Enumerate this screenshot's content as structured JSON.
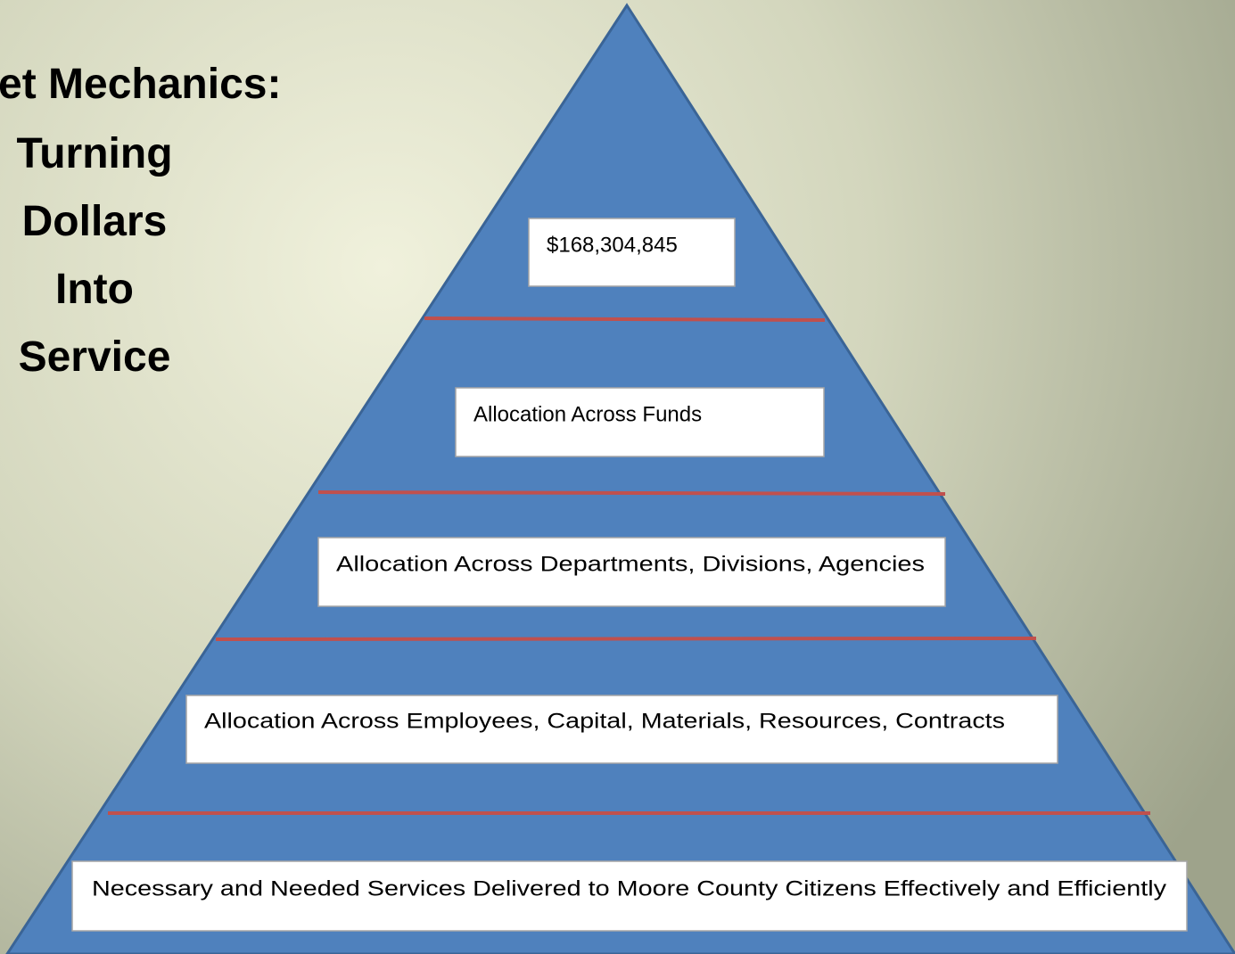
{
  "title": {
    "lines": [
      "et Mechanics:",
      "Turning",
      "Dollars",
      "Into",
      "Service"
    ]
  },
  "pyramid": {
    "levels": [
      {
        "label": "$168,304,845"
      },
      {
        "label": "Allocation Across Funds"
      },
      {
        "label": "Allocation Across Departments, Divisions, Agencies"
      },
      {
        "label": "Allocation Across Employees, Capital, Materials, Resources, Contracts"
      },
      {
        "label": "Necessary and Needed Services Delivered to Moore County Citizens Effectively and Efficiently"
      }
    ]
  }
}
